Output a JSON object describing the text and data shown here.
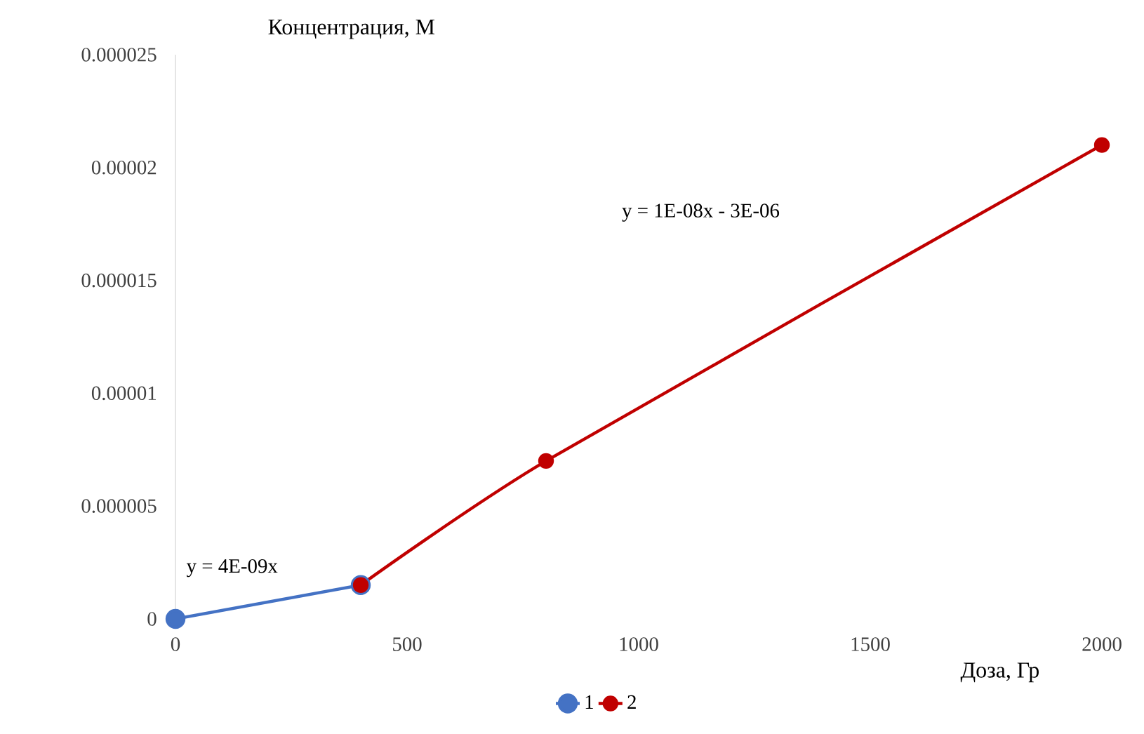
{
  "chart_data": {
    "type": "line",
    "xlabel": "Доза, Гр",
    "ylabel": "Концентрация, М",
    "annotations": [
      "y = 4E-09x",
      "y = 1E-08x - 3E-06"
    ],
    "series": [
      {
        "name": "1",
        "color": "#4472c4",
        "x": [
          0,
          400
        ],
        "values": [
          0,
          1.5e-06
        ]
      },
      {
        "name": "2",
        "color": "#c00000",
        "x": [
          400,
          800,
          2000
        ],
        "values": [
          1.5e-06,
          7e-06,
          2.1e-05
        ]
      }
    ],
    "xlim": [
      0,
      2000
    ],
    "xticks": [
      0,
      500,
      1000,
      1500,
      2000
    ],
    "ylim": [
      0,
      2.5e-05
    ],
    "yticks": [
      {
        "value": 0,
        "label": "0"
      },
      {
        "value": 5e-06,
        "label": "0.000005"
      },
      {
        "value": 1e-05,
        "label": "0.00001"
      },
      {
        "value": 1.5e-05,
        "label": "0.000015"
      },
      {
        "value": 2e-05,
        "label": "0.00002"
      },
      {
        "value": 2.5e-05,
        "label": "0.000025"
      }
    ],
    "grid": false,
    "legend": "bottom",
    "marker": "circle",
    "line_style": "solid"
  }
}
